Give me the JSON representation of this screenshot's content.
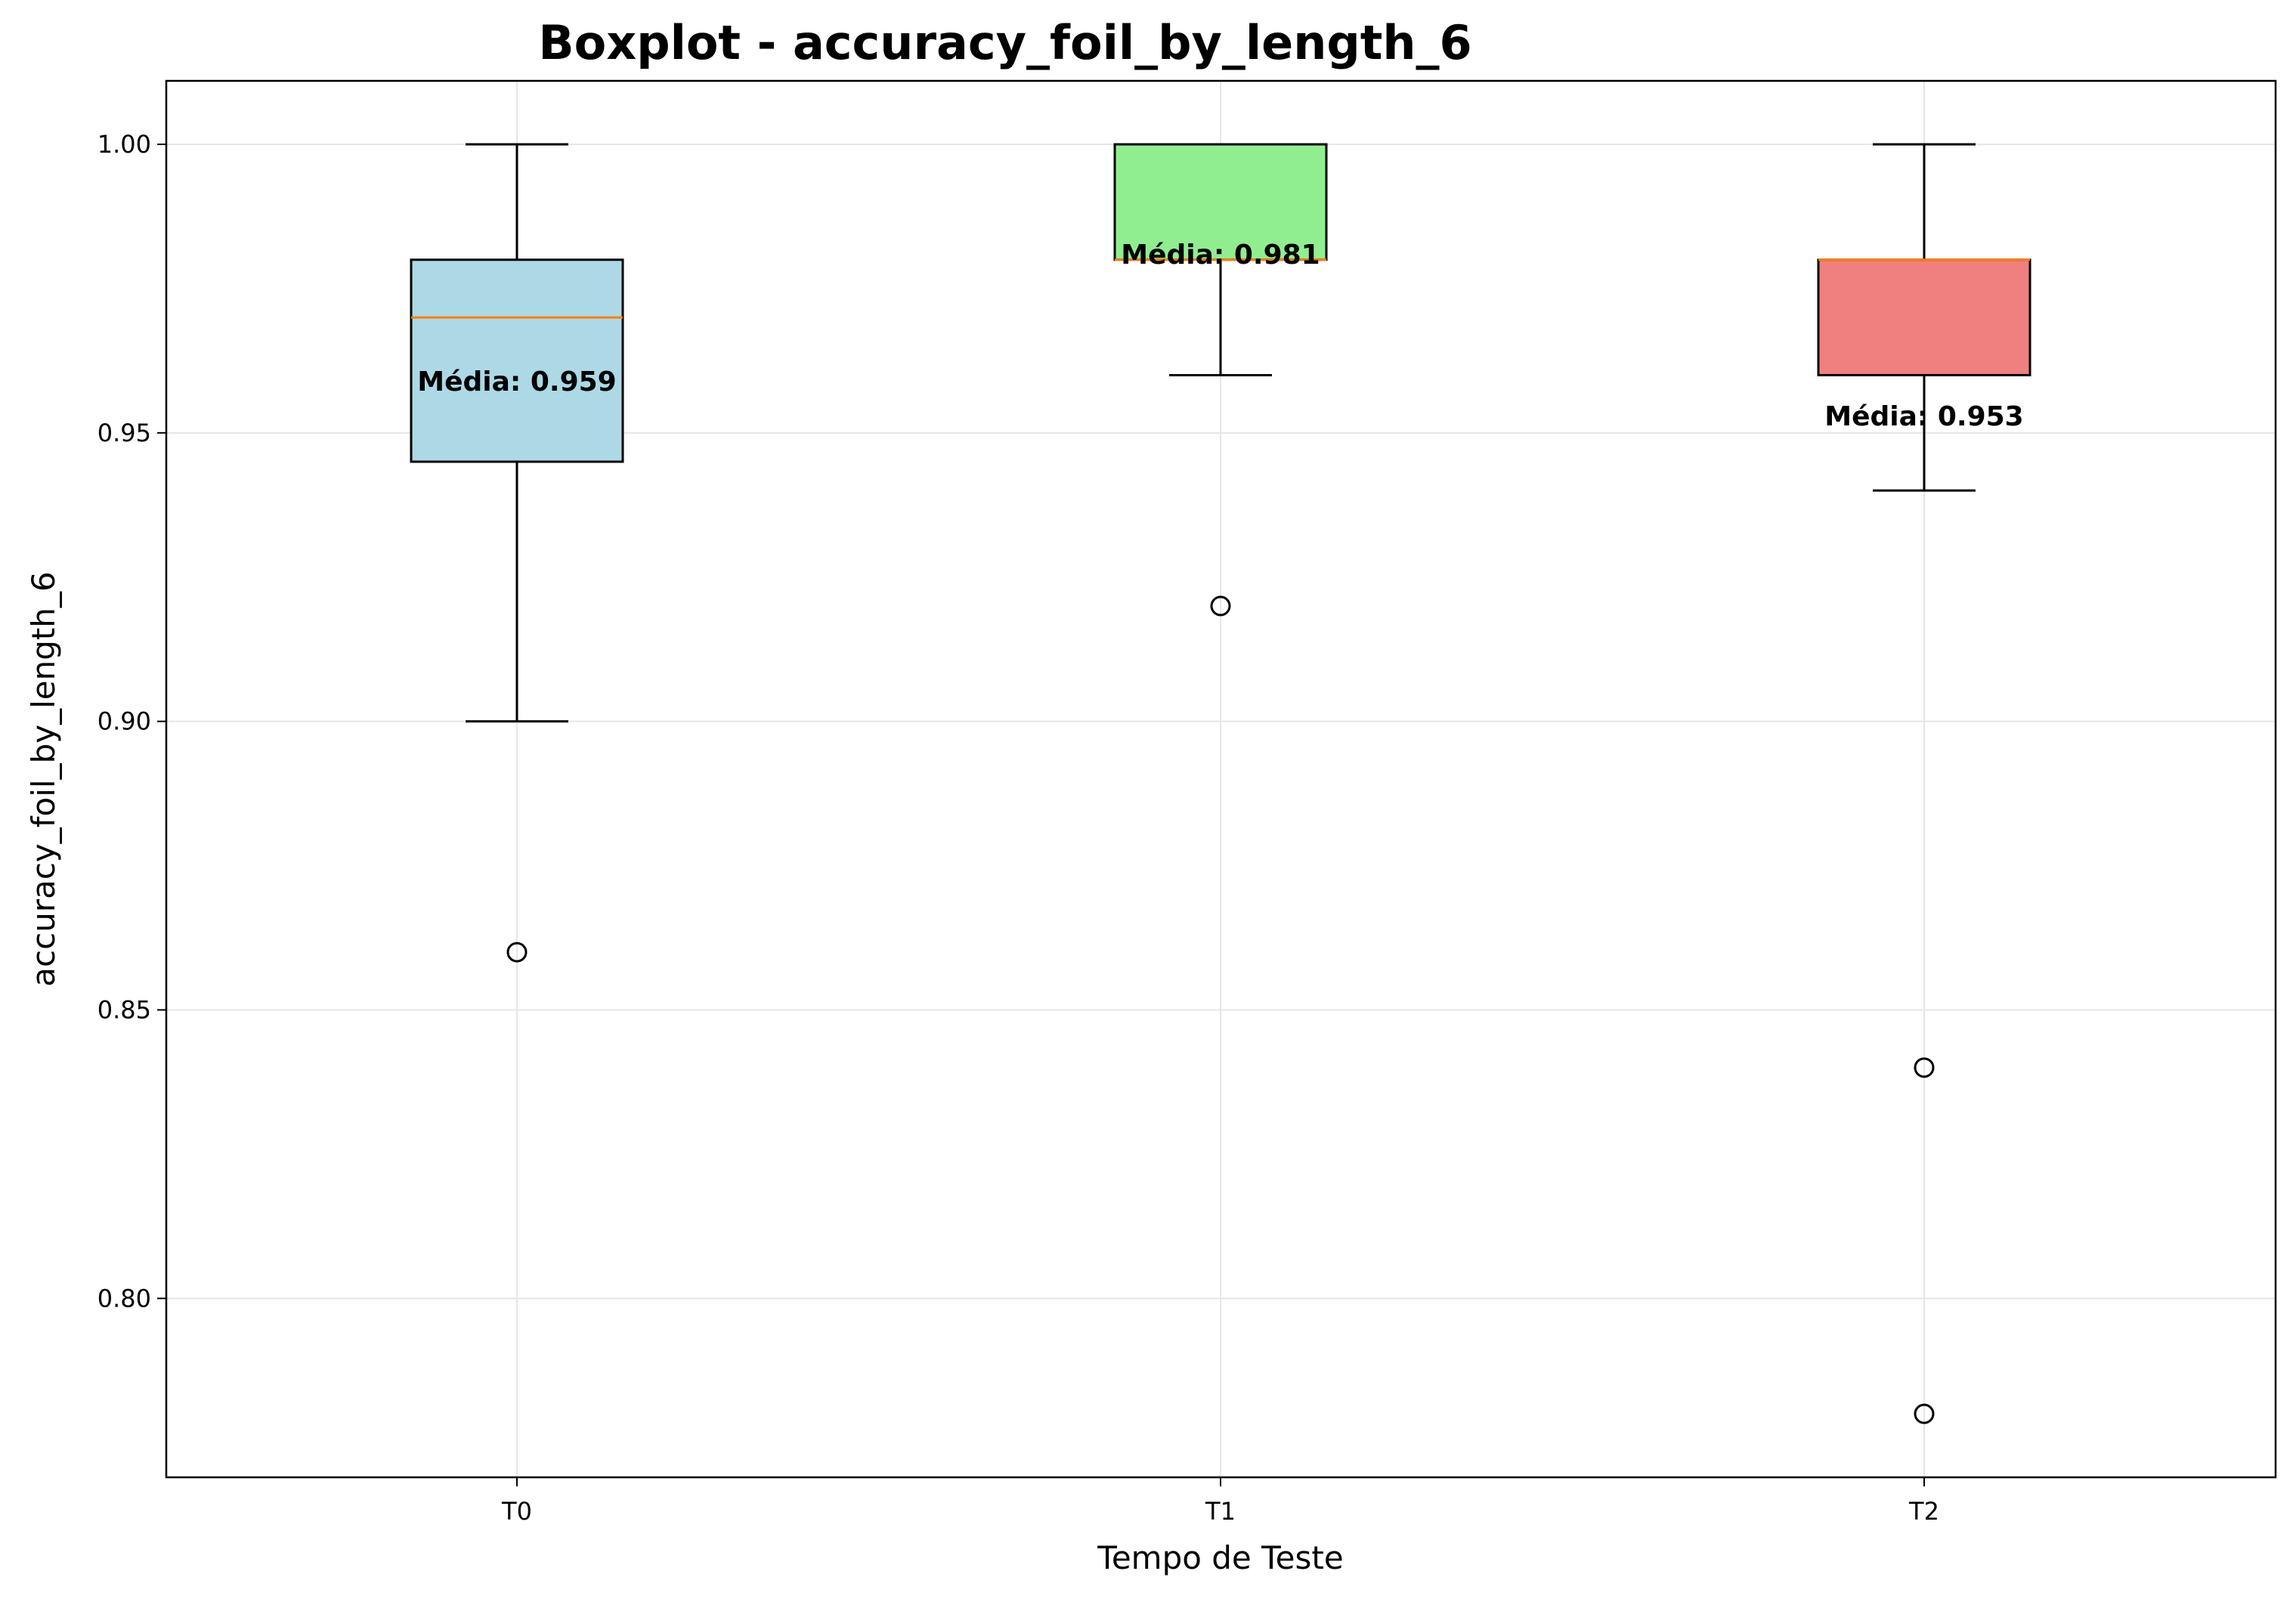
{
  "chart_data": {
    "type": "boxplot",
    "title": "Boxplot - accuracy_foil_by_length_6",
    "xlabel": "Tempo de Teste",
    "ylabel": "accuracy_foil_by_length_6",
    "ylim": [
      0.769,
      1.011
    ],
    "yticks": [
      0.8,
      0.85,
      0.9,
      0.95,
      1.0
    ],
    "ytick_labels": [
      "0.80",
      "0.85",
      "0.90",
      "0.95",
      "1.00"
    ],
    "grid": true,
    "legend": "none",
    "categories": [
      "T0",
      "T1",
      "T2"
    ],
    "boxes": [
      {
        "category": "T0",
        "whisker_low": 0.9,
        "q1": 0.945,
        "median": 0.97,
        "q3": 0.98,
        "whisker_high": 1.0,
        "outliers": [
          0.86
        ],
        "mean": 0.959,
        "mean_label": "Média: 0.959",
        "color": "#add8e6"
      },
      {
        "category": "T1",
        "whisker_low": 0.96,
        "q1": 0.98,
        "median": 0.98,
        "q3": 1.0,
        "whisker_high": 1.0,
        "outliers": [
          0.92
        ],
        "mean": 0.981,
        "mean_label": "Média: 0.981",
        "color": "#90ee90"
      },
      {
        "category": "T2",
        "whisker_low": 0.94,
        "q1": 0.96,
        "median": 0.98,
        "q3": 0.98,
        "whisker_high": 1.0,
        "outliers": [
          0.84,
          0.78
        ],
        "mean": 0.953,
        "mean_label": "Média: 0.953",
        "color": "#f08080"
      }
    ],
    "median_color": "#ff7f0e"
  }
}
